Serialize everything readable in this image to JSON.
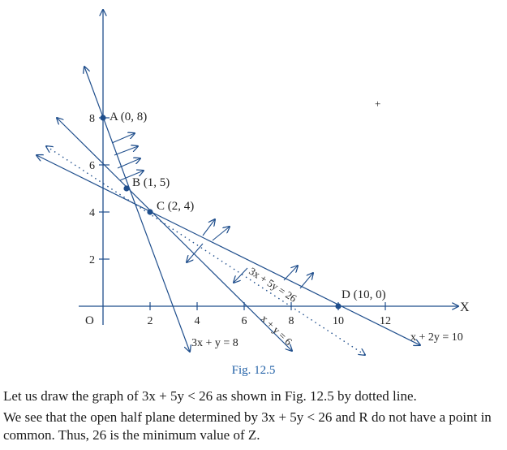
{
  "figure": {
    "caption": "Fig. 12.5",
    "axis_label_x": "X",
    "origin_label": "O",
    "x_ticks": [
      {
        "v": 2,
        "t": "2"
      },
      {
        "v": 4,
        "t": "4"
      },
      {
        "v": 6,
        "t": "6"
      },
      {
        "v": 8,
        "t": "8"
      },
      {
        "v": 10,
        "t": "10"
      },
      {
        "v": 12,
        "t": "12"
      }
    ],
    "y_ticks": [
      {
        "v": 2,
        "t": "2"
      },
      {
        "v": 4,
        "t": "4"
      },
      {
        "v": 6,
        "t": "6"
      },
      {
        "v": 8,
        "t": "8"
      }
    ],
    "points": [
      {
        "x": 0,
        "y": 8,
        "label": "A (0, 8)"
      },
      {
        "x": 1,
        "y": 5,
        "label": "B (1, 5)"
      },
      {
        "x": 2,
        "y": 4,
        "label": "C (2, 4)"
      },
      {
        "x": 10,
        "y": 0,
        "label": "D (10, 0)"
      }
    ],
    "lines": {
      "l1": "3x + y = 8",
      "l2": "x + y = 6",
      "l3": "x + 2y = 10",
      "l4": "3x + 5y = 26"
    },
    "colors": {
      "line": "#1f4e8c",
      "point": "#1f4e8c",
      "text": "#222222"
    }
  },
  "text": {
    "p1": "Let us draw the graph of 3x + 5y < 26 as shown in Fig. 12.5 by dotted line.",
    "p2": "We see that the open half plane determined by 3x + 5y < 26 and R do not have a point in common. Thus, 26 is the minimum value of Z."
  }
}
